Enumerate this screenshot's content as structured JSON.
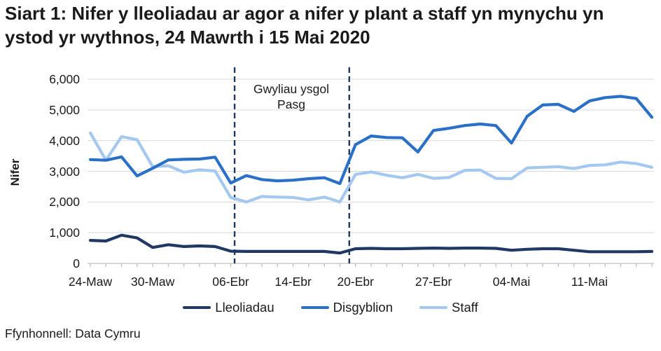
{
  "page": {
    "title": "Siart 1: Nifer y lleoliadau ar agor a nifer y plant a staff yn mynychu yn ystod yr wythnos, 24 Mawrth i 15 Mai 2020",
    "source": "Ffynhonnell: Data Cymru"
  },
  "chart_data": {
    "type": "line",
    "title": "Siart 1: Nifer y lleoliadau ar agor a nifer y plant a staff yn mynychu yn ystod yr wythnos, 24 Mawrth i 15 Mai 2020",
    "xlabel": "",
    "ylabel": "Nifer",
    "ylim": [
      0,
      6000
    ],
    "ytick_step": 1000,
    "ytick_labels": [
      "0",
      "1,000",
      "2,000",
      "3,000",
      "4,000",
      "5,000",
      "6,000"
    ],
    "grid": "horizontal",
    "legend_position": "bottom",
    "categories": [
      "24-Maw",
      "25-Maw",
      "26-Maw",
      "27-Maw",
      "30-Maw",
      "31-Maw",
      "01-Ebr",
      "02-Ebr",
      "03-Ebr",
      "06-Ebr",
      "07-Ebr",
      "08-Ebr",
      "09-Ebr",
      "14-Ebr",
      "15-Ebr",
      "16-Ebr",
      "17-Ebr",
      "20-Ebr",
      "21-Ebr",
      "22-Ebr",
      "23-Ebr",
      "24-Ebr",
      "27-Ebr",
      "28-Ebr",
      "29-Ebr",
      "30-Ebr",
      "01-Mai",
      "04-Mai",
      "05-Mai",
      "06-Mai",
      "07-Mai",
      "08-Mai",
      "11-Mai",
      "12-Mai",
      "13-Mai",
      "14-Mai",
      "15-Mai"
    ],
    "xticks_shown": [
      {
        "index": 0,
        "label": "24-Maw"
      },
      {
        "index": 4,
        "label": "30-Maw"
      },
      {
        "index": 9,
        "label": "06-Ebr"
      },
      {
        "index": 13,
        "label": "14-Ebr"
      },
      {
        "index": 17,
        "label": "20-Ebr"
      },
      {
        "index": 22,
        "label": "27-Ebr"
      },
      {
        "index": 27,
        "label": "04-Mai"
      },
      {
        "index": 32,
        "label": "11-Mai"
      }
    ],
    "series": [
      {
        "name": "Lleoliadau",
        "color": "#1F3864",
        "values": [
          750,
          730,
          920,
          830,
          520,
          610,
          550,
          570,
          550,
          400,
          390,
          390,
          390,
          390,
          390,
          390,
          340,
          480,
          490,
          480,
          480,
          490,
          500,
          490,
          500,
          500,
          490,
          430,
          460,
          480,
          480,
          430,
          380,
          380,
          380,
          380,
          390
        ]
      },
      {
        "name": "Disgyblion",
        "color": "#2A70C8",
        "values": [
          3380,
          3360,
          3470,
          2850,
          3100,
          3370,
          3390,
          3400,
          3460,
          2620,
          2860,
          2730,
          2690,
          2710,
          2760,
          2790,
          2600,
          3870,
          4150,
          4100,
          4090,
          3630,
          4330,
          4400,
          4490,
          4540,
          4490,
          3920,
          4790,
          5160,
          5180,
          4950,
          5290,
          5400,
          5440,
          5370,
          4760
        ]
      },
      {
        "name": "Staff",
        "color": "#A5C8F0",
        "values": [
          4250,
          3360,
          4130,
          4030,
          3150,
          3180,
          2970,
          3050,
          3010,
          2150,
          2000,
          2180,
          2160,
          2150,
          2070,
          2160,
          2000,
          2900,
          2980,
          2870,
          2790,
          2900,
          2770,
          2800,
          3030,
          3040,
          2770,
          2760,
          3110,
          3130,
          3150,
          3090,
          3190,
          3210,
          3300,
          3250,
          3130
        ]
      }
    ],
    "annotation": {
      "lines": [
        "Gwyliau ysgol",
        "Pasg"
      ],
      "dash_indices": [
        9.25,
        16.6
      ],
      "dash_color": "#1F3864"
    },
    "colors": {
      "gridline": "#D9D9D9",
      "axis": "#BFBFBF",
      "text": "#1a1a1a"
    }
  }
}
